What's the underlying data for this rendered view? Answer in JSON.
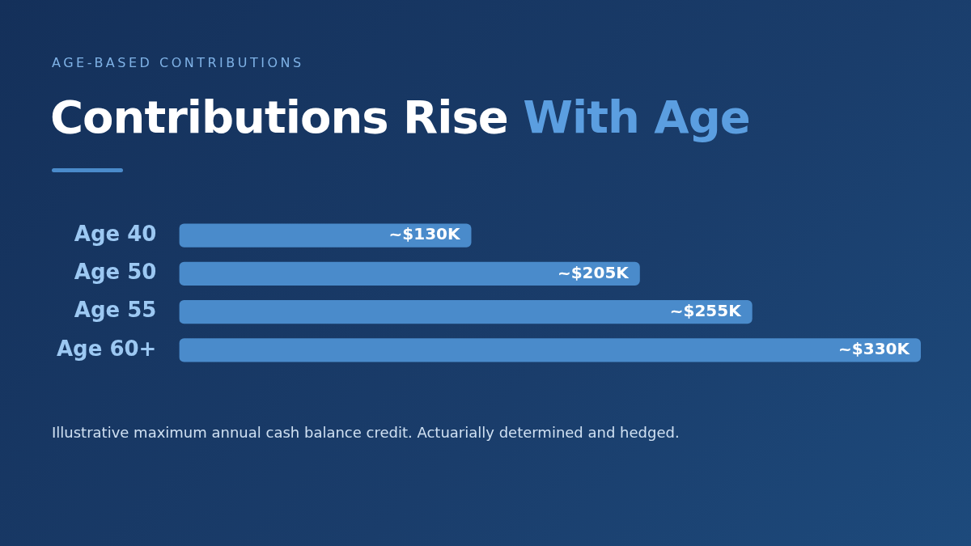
{
  "chart_data": {
    "type": "bar",
    "orientation": "horizontal",
    "subtitle": "AGE-BASED CONTRIBUTIONS",
    "title": "Contributions Rise With Age",
    "categories": [
      "Age 40",
      "Age 50",
      "Age 55",
      "Age 60+"
    ],
    "values": [
      130,
      205,
      255,
      330
    ],
    "value_labels": [
      "~$130K",
      "~$205K",
      "~$255K",
      "~$330K"
    ],
    "color": "#4a8bcb",
    "annotations": [
      "Illustrative maximum annual cash balance credit. Actuarially determined and hedged."
    ]
  }
}
